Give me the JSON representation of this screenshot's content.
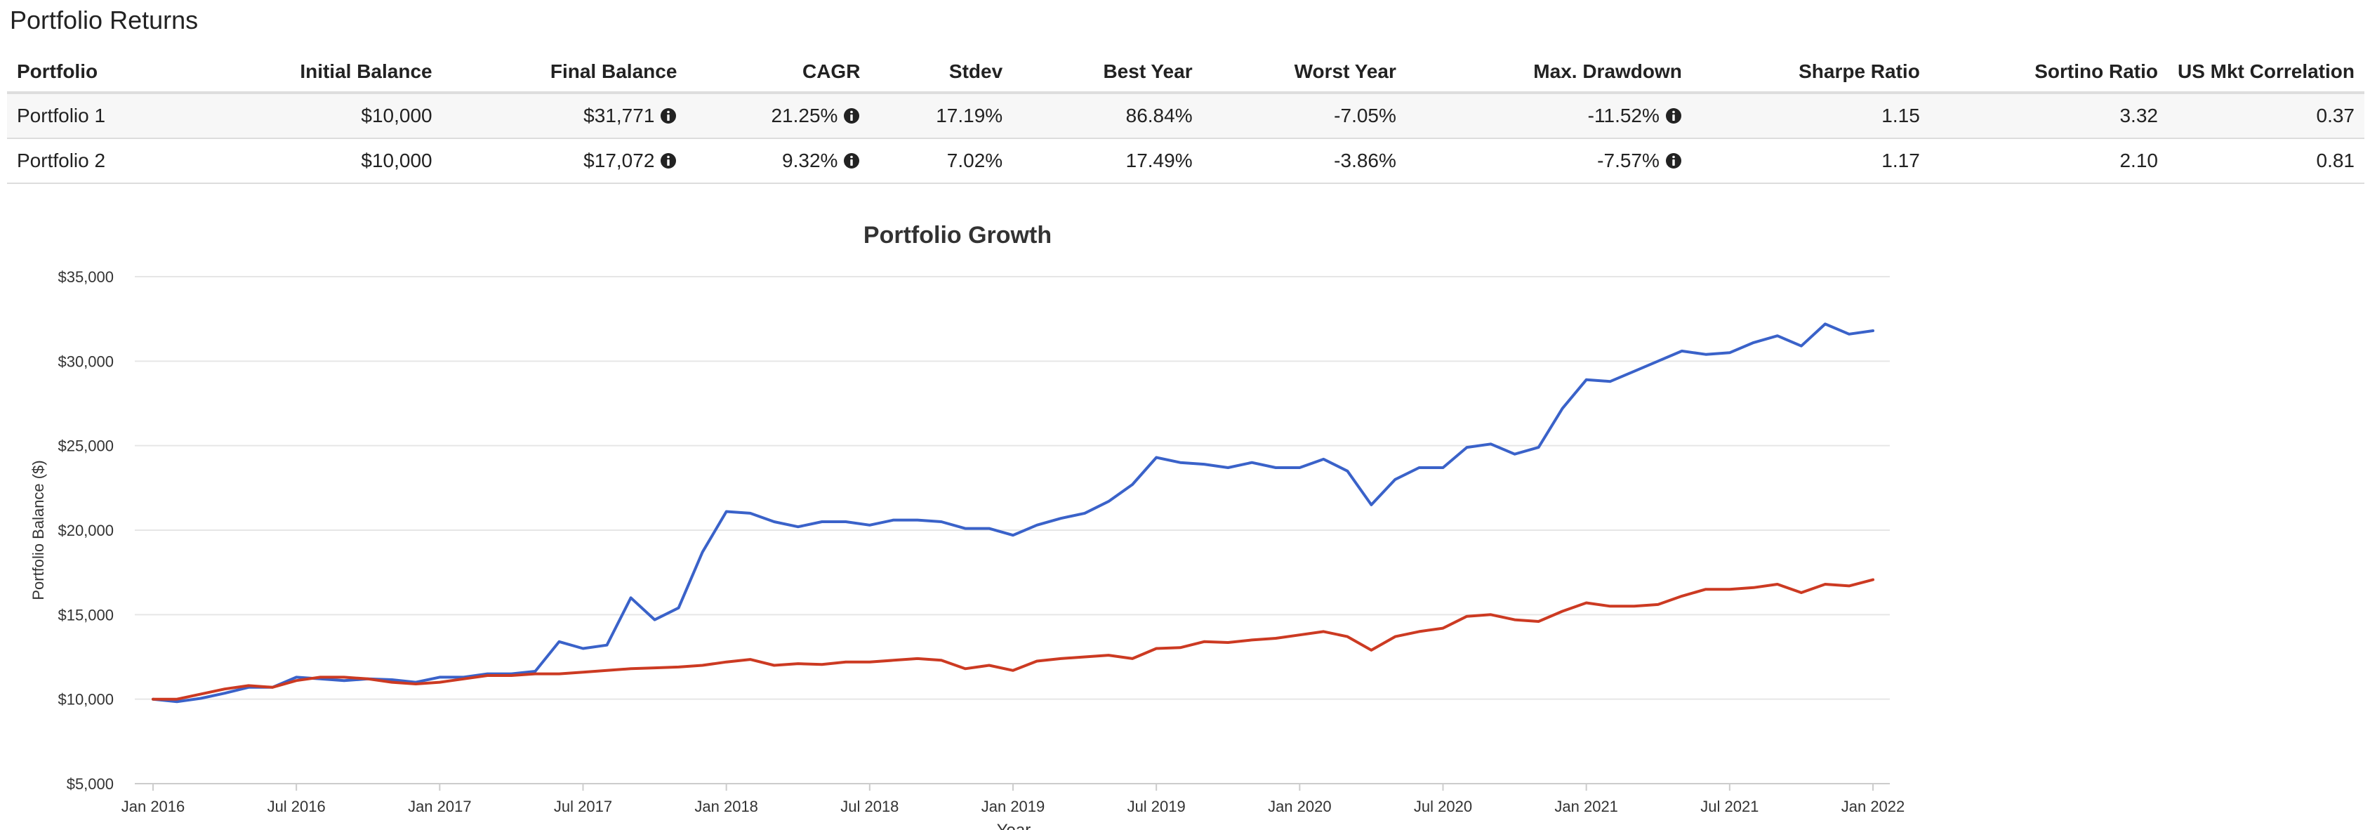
{
  "page": {
    "heading": "Portfolio Returns"
  },
  "table": {
    "columns": [
      "Portfolio",
      "Initial Balance",
      "Final Balance",
      "CAGR",
      "Stdev",
      "Best Year",
      "Worst Year",
      "Max. Drawdown",
      "Sharpe Ratio",
      "Sortino Ratio",
      "US Mkt Correlation"
    ],
    "rows": [
      {
        "portfolio": "Portfolio 1",
        "initial_balance": "$10,000",
        "final_balance": "$31,771",
        "cagr": "21.25%",
        "stdev": "17.19%",
        "best_year": "86.84%",
        "worst_year": "-7.05%",
        "max_drawdown": "-11.52%",
        "sharpe": "1.15",
        "sortino": "3.32",
        "us_mkt_correlation": "0.37"
      },
      {
        "portfolio": "Portfolio 2",
        "initial_balance": "$10,000",
        "final_balance": "$17,072",
        "cagr": "9.32%",
        "stdev": "7.02%",
        "best_year": "17.49%",
        "worst_year": "-3.86%",
        "max_drawdown": "-7.57%",
        "sharpe": "1.17",
        "sortino": "2.10",
        "us_mkt_correlation": "0.81"
      }
    ],
    "info_icon": "info-circle-icon"
  },
  "chart_data": {
    "type": "line",
    "title": "Portfolio Growth",
    "xlabel": "Year",
    "ylabel": "Portfolio Balance ($)",
    "ylim": [
      5000,
      35000
    ],
    "yticks": [
      "$5,000",
      "$10,000",
      "$15,000",
      "$20,000",
      "$25,000",
      "$30,000",
      "$35,000"
    ],
    "xticks": [
      "Jan 2016",
      "Jul 2016",
      "Jan 2017",
      "Jul 2017",
      "Jan 2018",
      "Jul 2018",
      "Jan 2019",
      "Jul 2019",
      "Jan 2020",
      "Jul 2020",
      "Jan 2021",
      "Jul 2021",
      "Jan 2022"
    ],
    "x_start": "Jan 2016",
    "x_end": "Jan 2022",
    "grid": true,
    "legend": "none",
    "series": [
      {
        "color": "#3a62c9",
        "values": [
          10000,
          9850,
          10050,
          10350,
          10700,
          10700,
          11300,
          11200,
          11100,
          11200,
          11150,
          11000,
          11300,
          11300,
          11500,
          11500,
          11650,
          13400,
          13000,
          13200,
          16000,
          14700,
          15400,
          18700,
          21100,
          21000,
          20500,
          20200,
          20500,
          20500,
          20300,
          20600,
          20600,
          20500,
          20100,
          20100,
          19700,
          20300,
          20700,
          21000,
          21700,
          22700,
          24300,
          24000,
          23900,
          23700,
          24000,
          23700,
          23700,
          24200,
          23500,
          21500,
          23000,
          23700,
          23700,
          24900,
          25100,
          24500,
          24900,
          27200,
          28900,
          28800,
          29400,
          30000,
          30600,
          30400,
          30500,
          31100,
          31500,
          30900,
          32200,
          31600,
          31800
        ]
      },
      {
        "color": "#cc3a22",
        "values": [
          10000,
          10000,
          10300,
          10600,
          10800,
          10700,
          11100,
          11300,
          11300,
          11200,
          11000,
          10900,
          11000,
          11200,
          11400,
          11400,
          11500,
          11500,
          11600,
          11700,
          11800,
          11850,
          11900,
          12000,
          12200,
          12350,
          12000,
          12100,
          12050,
          12200,
          12200,
          12300,
          12400,
          12300,
          11800,
          12000,
          11700,
          12250,
          12400,
          12500,
          12600,
          12400,
          13000,
          13050,
          13400,
          13350,
          13500,
          13600,
          13800,
          14000,
          13700,
          12900,
          13700,
          14000,
          14200,
          14900,
          15000,
          14700,
          14600,
          15200,
          15700,
          15500,
          15500,
          15600,
          16100,
          16500,
          16500,
          16600,
          16800,
          16300,
          16800,
          16700,
          17072
        ]
      }
    ]
  }
}
